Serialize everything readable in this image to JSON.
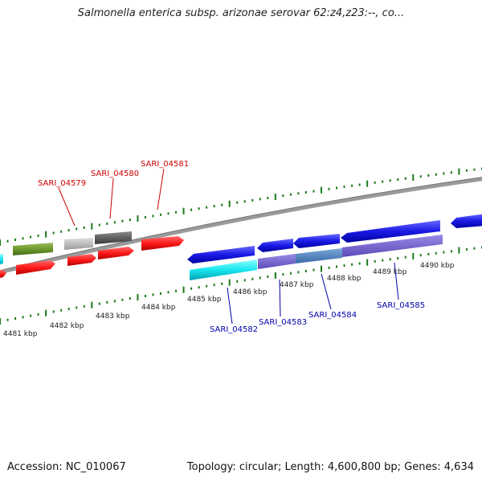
{
  "title": "Salmonella enterica subsp. arizonae serovar 62:z4,z23:--, co...",
  "footer": {
    "accession": "Accession: NC_010067",
    "summary": "Topology: circular; Length: 4,600,800 bp; Genes: 4,634"
  },
  "colors": {
    "backbone": "#8a8a8a",
    "forward_tick": "#1a7a1a",
    "reverse_tick": "#1a7a1a",
    "label_forward": "#cc0000",
    "label_reverse": "#0000aa"
  },
  "kbp_labels": [
    "4481 kbp",
    "4482 kbp",
    "4483 kbp",
    "4484 kbp",
    "4485 kbp",
    "4486 kbp",
    "4487 kbp",
    "4488 kbp",
    "4489 kbp",
    "4490 kbp"
  ],
  "gene_labels": {
    "top": [
      "SARI_04579",
      "SARI_04580",
      "SARI_04581"
    ],
    "bottom": [
      "SARI_04582",
      "SARI_04583",
      "SARI_04584",
      "SARI_04585"
    ]
  }
}
